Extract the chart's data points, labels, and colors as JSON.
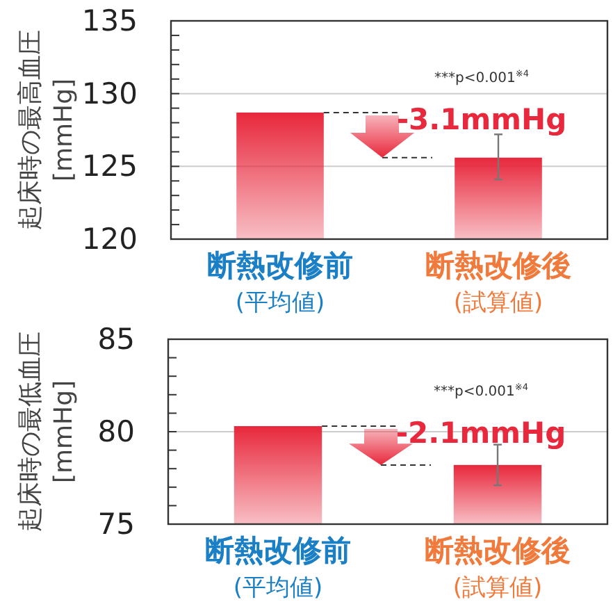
{
  "chart_data": [
    {
      "type": "bar",
      "ylabel": "起床時の最高血圧\n[mmHg]",
      "categories": [
        "断熱改修前\n(平均値)",
        "断熱改修後\n(試算値)"
      ],
      "values": [
        128.7,
        125.6
      ],
      "errors": [
        null,
        [
          124.1,
          127.2
        ]
      ],
      "color": "#e8283c",
      "ylim": [
        120,
        135
      ],
      "yticks": [
        120,
        {
          "value": 121,
          "label": null
        },
        {
          "value": 122,
          "label": null
        },
        {
          "value": 123,
          "label": null
        },
        {
          "value": 124,
          "label": null
        },
        125,
        {
          "value": 126,
          "label": null
        },
        {
          "value": 127,
          "label": null
        },
        {
          "value": 128,
          "label": null
        },
        {
          "value": 129,
          "label": null
        },
        130,
        {
          "value": 131,
          "label": null
        },
        {
          "value": 132,
          "label": null
        },
        {
          "value": 133,
          "label": null
        },
        {
          "value": 134,
          "label": null
        },
        135
      ],
      "grid": "y",
      "annotations": [
        "***p<0.001$^{※4}$",
        "-3.1mmHg"
      ]
    },
    {
      "type": "bar",
      "ylabel": "起床時の最低血圧\n[mmHg]",
      "categories": [
        "断熱改修前\n(平均値)",
        "断熱改修後\n(試算値)"
      ],
      "values": [
        80.3,
        78.2
      ],
      "errors": [
        null,
        [
          77.1,
          79.3
        ]
      ],
      "color": "#e8283c",
      "ylim": [
        75,
        85
      ],
      "yticks": [
        75,
        {
          "value": 76,
          "label": null
        },
        {
          "value": 77,
          "label": null
        },
        {
          "value": 78,
          "label": null
        },
        {
          "value": 79,
          "label": null
        },
        80,
        {
          "value": 81,
          "label": null
        },
        {
          "value": 82,
          "label": null
        },
        {
          "value": 83,
          "label": null
        },
        {
          "value": 84,
          "label": null
        },
        85
      ],
      "grid": "y",
      "annotations": [
        "***p<0.001$^{※4}$",
        "-2.1mmHg"
      ]
    }
  ]
}
